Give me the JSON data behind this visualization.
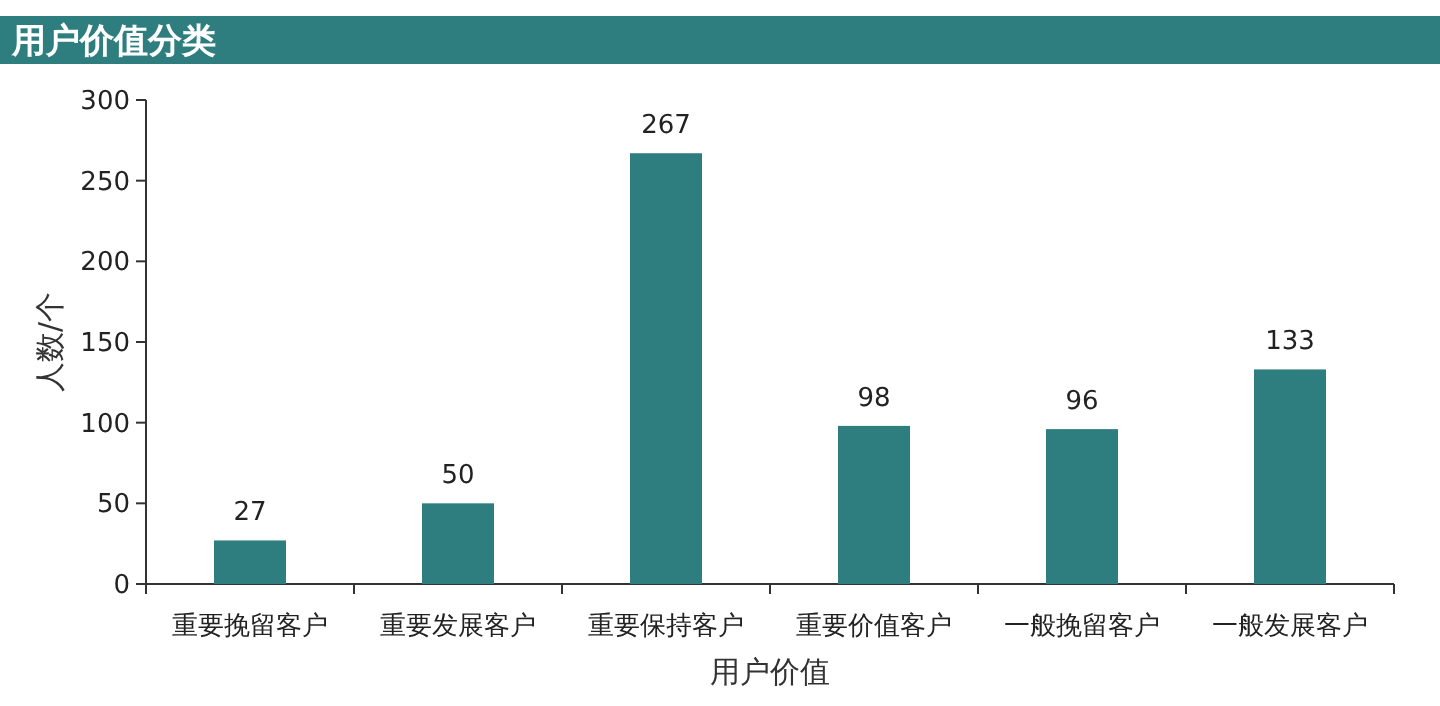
{
  "chart_data": {
    "type": "bar",
    "title": "用户价值分类",
    "xlabel": "用户价值",
    "ylabel": "人数/个",
    "categories": [
      "重要挽留客户",
      "重要发展客户",
      "重要保持客户",
      "重要价值客户",
      "一般挽留客户",
      "一般发展客户"
    ],
    "values": [
      27,
      50,
      267,
      98,
      96,
      133
    ],
    "color": "#2e7d7f",
    "ylim": [
      0,
      300
    ],
    "yticks": [
      0,
      50,
      100,
      150,
      200,
      250,
      300
    ],
    "data_labels": true,
    "grid": false
  }
}
